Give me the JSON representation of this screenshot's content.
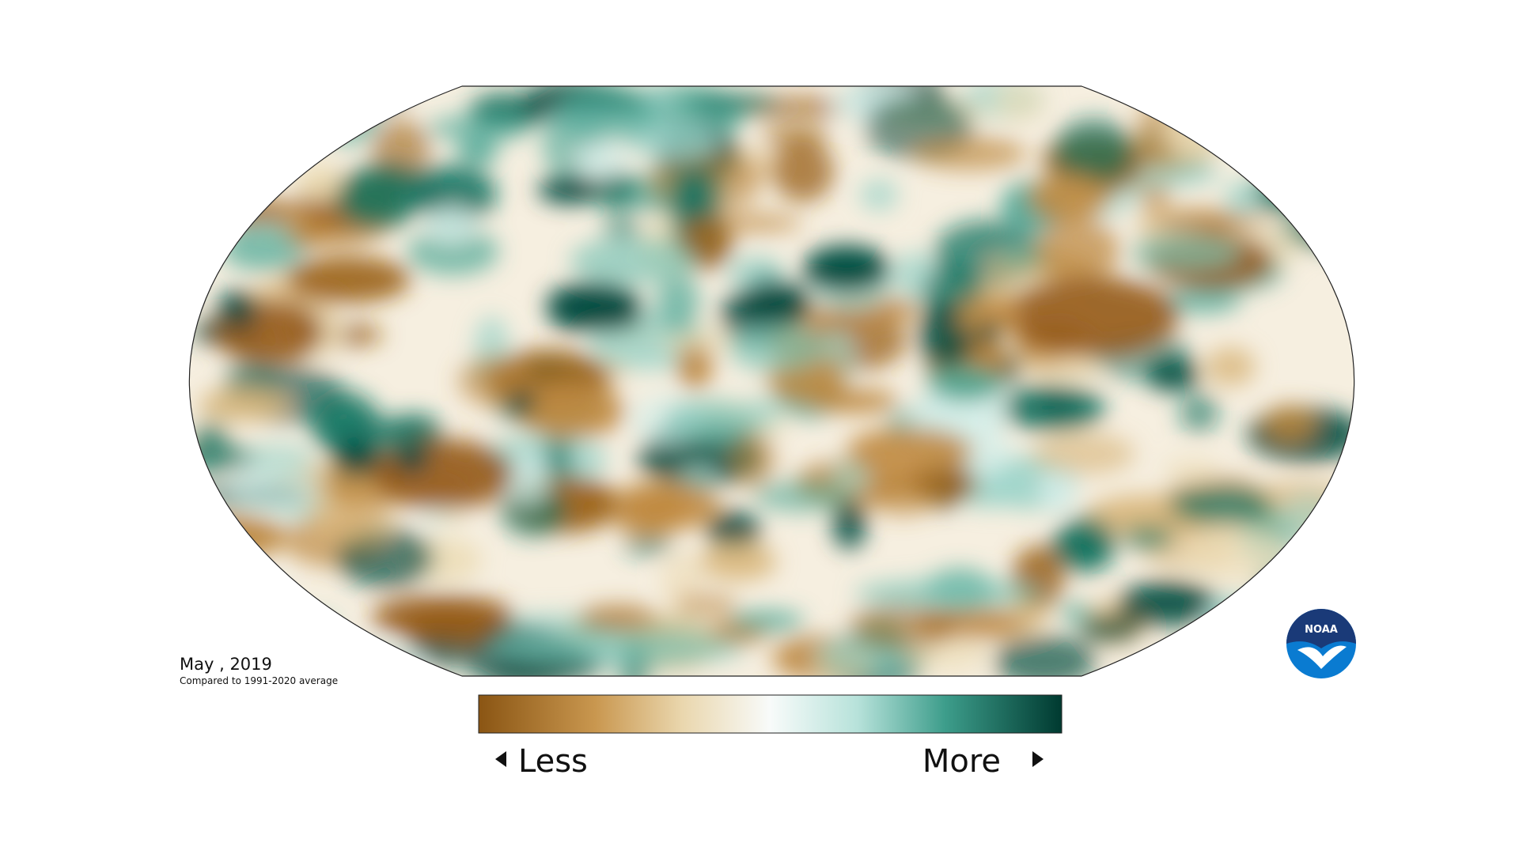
{
  "map": {
    "date": "May , 2019",
    "subtitle": "Compared to 1991-2020 average",
    "legend": {
      "low": "Less",
      "high": "More"
    },
    "logo": "NOAA"
  }
}
